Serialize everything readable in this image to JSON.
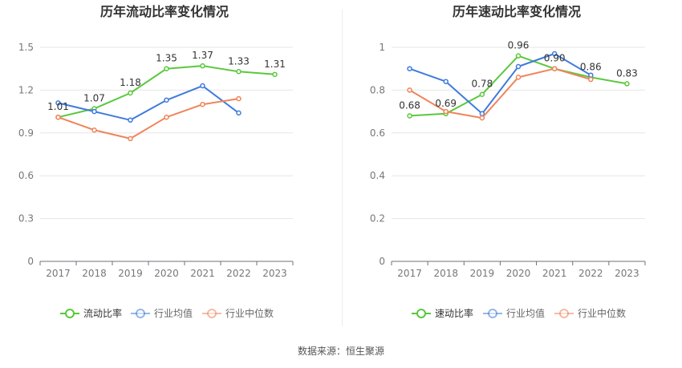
{
  "source": "数据来源：恒生聚源",
  "chart_data": [
    {
      "type": "line",
      "title": "历年流动比率变化情况",
      "categories": [
        "2017",
        "2018",
        "2019",
        "2020",
        "2021",
        "2022",
        "2023"
      ],
      "ylim": [
        0,
        1.5
      ],
      "yticks": [
        "0",
        "0.3",
        "0.6",
        "0.9",
        "1.2",
        "1.5"
      ],
      "grid": true,
      "legend_position": "bottom",
      "series": [
        {
          "name": "流动比率",
          "color": "#5ac83c",
          "values": [
            1.01,
            1.07,
            1.18,
            1.35,
            1.37,
            1.33,
            1.31
          ],
          "labels": [
            "1.01",
            "1.07",
            "1.18",
            "1.35",
            "1.37",
            "1.33",
            "1.31"
          ]
        },
        {
          "name": "行业均值",
          "color": "#3f7bdc",
          "values": [
            1.11,
            1.05,
            0.99,
            1.13,
            1.23,
            1.04,
            null
          ]
        },
        {
          "name": "行业中位数",
          "color": "#f0845a",
          "values": [
            1.01,
            0.92,
            0.86,
            1.01,
            1.1,
            1.14,
            null
          ]
        }
      ]
    },
    {
      "type": "line",
      "title": "历年速动比率变化情况",
      "categories": [
        "2017",
        "2018",
        "2019",
        "2020",
        "2021",
        "2022",
        "2023"
      ],
      "ylim": [
        0,
        1
      ],
      "yticks": [
        "0",
        "0.2",
        "0.4",
        "0.6",
        "0.8",
        "1"
      ],
      "grid": true,
      "legend_position": "bottom",
      "series": [
        {
          "name": "速动比率",
          "color": "#5ac83c",
          "values": [
            0.68,
            0.69,
            0.78,
            0.96,
            0.9,
            0.86,
            0.83
          ],
          "labels": [
            "0.68",
            "0.69",
            "0.78",
            "0.96",
            "0.90",
            "0.86",
            "0.83"
          ]
        },
        {
          "name": "行业均值",
          "color": "#3f7bdc",
          "values": [
            0.9,
            0.84,
            0.69,
            0.91,
            0.97,
            0.87,
            null
          ]
        },
        {
          "name": "行业中位数",
          "color": "#f0845a",
          "values": [
            0.8,
            0.7,
            0.67,
            0.86,
            0.9,
            0.85,
            null
          ]
        }
      ]
    }
  ]
}
